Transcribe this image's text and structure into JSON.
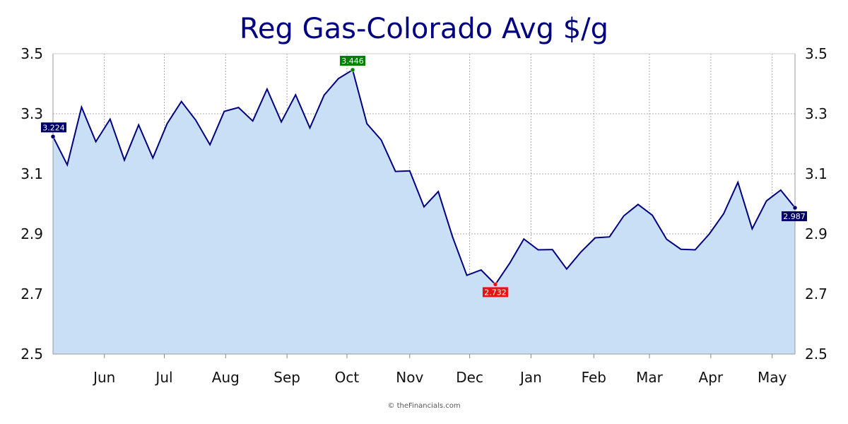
{
  "colors": {
    "line": "#000080",
    "fill": "#c9dff6",
    "grid": "#aaaaaa",
    "high": "#008000",
    "low": "#ee1111",
    "first": "#000066",
    "last": "#000066"
  },
  "chart_data": {
    "type": "area",
    "title": "Reg Gas-Colorado Avg $/g",
    "xlabel": "",
    "ylabel": "",
    "ylim": [
      2.5,
      3.5
    ],
    "yticks": [
      "2.5",
      "2.7",
      "2.9",
      "3.1",
      "3.3",
      "3.5"
    ],
    "ytick_values": [
      2.5,
      2.7,
      2.9,
      3.1,
      3.3,
      3.5
    ],
    "grid": true,
    "months": [
      {
        "label": "Jun",
        "index": 3.6
      },
      {
        "label": "Jul",
        "index": 7.8
      },
      {
        "label": "Aug",
        "index": 12.1
      },
      {
        "label": "Sep",
        "index": 16.4
      },
      {
        "label": "Oct",
        "index": 20.6
      },
      {
        "label": "Nov",
        "index": 25.0
      },
      {
        "label": "Dec",
        "index": 29.2
      },
      {
        "label": "Jan",
        "index": 33.5
      },
      {
        "label": "Feb",
        "index": 37.9
      },
      {
        "label": "Mar",
        "index": 41.8
      },
      {
        "label": "Apr",
        "index": 46.1
      },
      {
        "label": "May",
        "index": 50.4
      }
    ],
    "series": [
      {
        "values": [
          3.224,
          3.13,
          3.322,
          3.207,
          3.282,
          3.146,
          3.263,
          3.153,
          3.267,
          3.341,
          3.279,
          3.197,
          3.308,
          3.321,
          3.276,
          3.382,
          3.273,
          3.363,
          3.253,
          3.362,
          3.417,
          3.446,
          3.267,
          3.213,
          3.108,
          3.11,
          2.99,
          3.041,
          2.89,
          2.762,
          2.78,
          2.732,
          2.802,
          2.883,
          2.847,
          2.848,
          2.783,
          2.84,
          2.887,
          2.89,
          2.96,
          2.998,
          2.962,
          2.882,
          2.849,
          2.847,
          2.9,
          2.967,
          3.072,
          2.917,
          3.01,
          3.046,
          2.987
        ]
      }
    ],
    "annotations": [
      {
        "kind": "first",
        "index": 0,
        "text": "3.224"
      },
      {
        "kind": "high",
        "index": 21,
        "text": "3.446"
      },
      {
        "kind": "low",
        "index": 31,
        "text": "2.732"
      },
      {
        "kind": "last",
        "index": 52,
        "text": "2.987"
      }
    ]
  },
  "credit": "© theFinancials.com"
}
